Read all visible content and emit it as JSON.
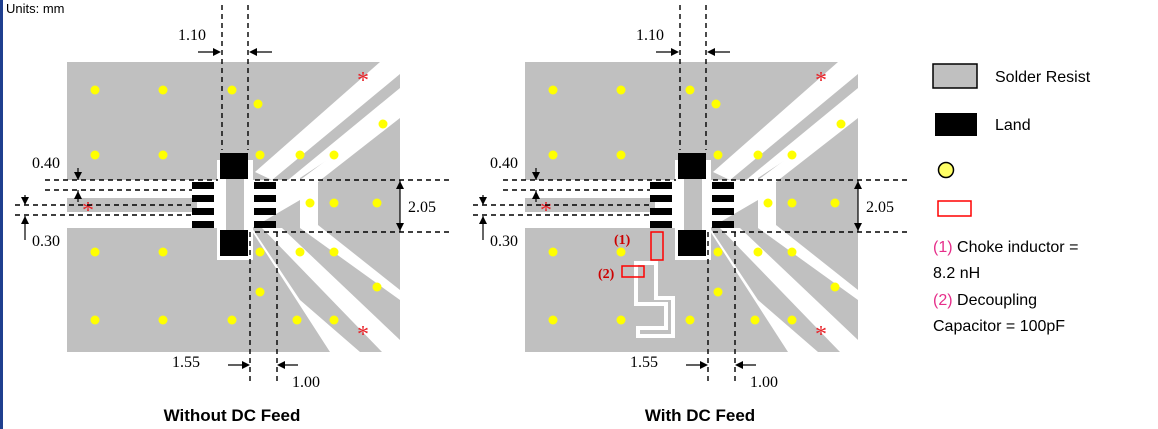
{
  "units_label": "Units: mm",
  "diagrams": [
    {
      "caption": "Without DC Feed",
      "dims": {
        "top_gap": "1.10",
        "land_pitch": "0.40",
        "land_width": "0.30",
        "side_gap": "2.05",
        "bottom_left": "1.55",
        "bottom_right": "1.00"
      }
    },
    {
      "caption": "With DC Feed",
      "dims": {
        "top_gap": "1.10",
        "land_pitch": "0.40",
        "land_width": "0.30",
        "side_gap": "2.05",
        "bottom_left": "1.55",
        "bottom_right": "1.00"
      },
      "component_labels": [
        "(1)",
        "(2)"
      ]
    }
  ],
  "legend": {
    "items": [
      {
        "label": "Solder Resist",
        "swatch": "solder-resist",
        "color": "#c0c0c0"
      },
      {
        "label": "Land",
        "swatch": "land",
        "color": "#000000"
      },
      {
        "label": "",
        "swatch": "via",
        "color": "#ffff66"
      },
      {
        "label": "",
        "swatch": "component",
        "color": "#ff0000"
      }
    ],
    "notes": [
      {
        "num": "(1)",
        "line1": " Choke inductor =",
        "line2": "8.2 nH"
      },
      {
        "num": "(2)",
        "line1": " Decoupling",
        "line2": "Capacitor = 100pF"
      }
    ]
  },
  "colors": {
    "resist": "#c0c0c0",
    "land": "#000000",
    "via": "#ffff00",
    "asterisk": "#e8242a",
    "note_num": "#e62e8a"
  }
}
